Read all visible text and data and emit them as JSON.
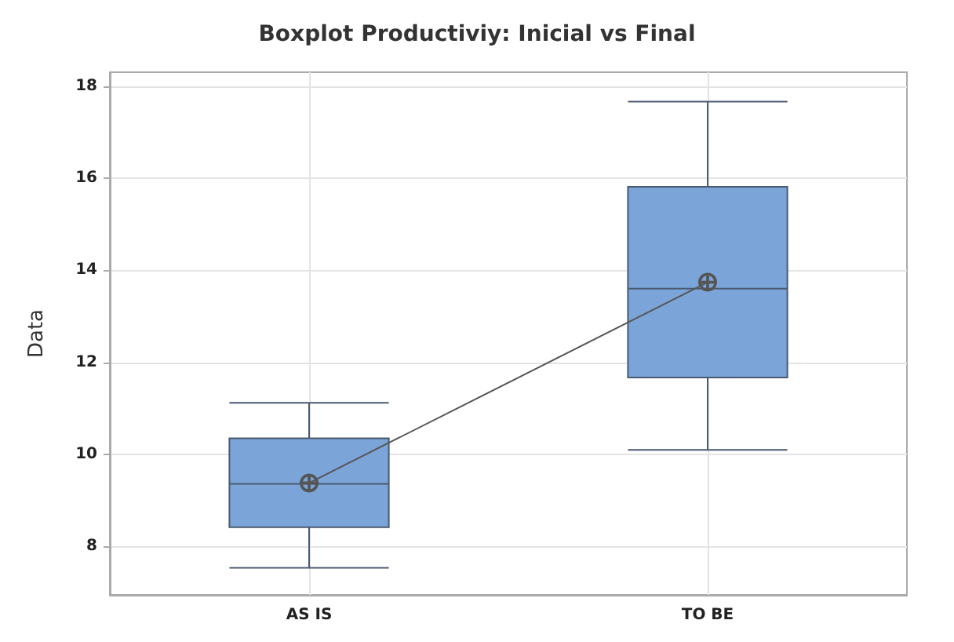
{
  "chart_data": {
    "type": "box",
    "title": "Boxplot Productiviy: Inicial vs Final",
    "ylabel": "Data",
    "categories": [
      "AS IS",
      "TO BE"
    ],
    "boxes": [
      {
        "low": 7.54,
        "q1": 8.42,
        "median": 9.36,
        "q3": 10.35,
        "high": 11.12
      },
      {
        "low": 10.1,
        "q1": 11.67,
        "median": 13.6,
        "q3": 15.81,
        "high": 17.66
      }
    ],
    "color": "#7ba5d8",
    "series": [
      {
        "type": "line",
        "color": "#555555",
        "values": [
          9.38,
          13.74
        ],
        "marker": "circle"
      }
    ],
    "ylim": [
      6.95,
      18.3
    ],
    "yticks": [
      8,
      10,
      12,
      14,
      16,
      18
    ],
    "grid": true
  }
}
